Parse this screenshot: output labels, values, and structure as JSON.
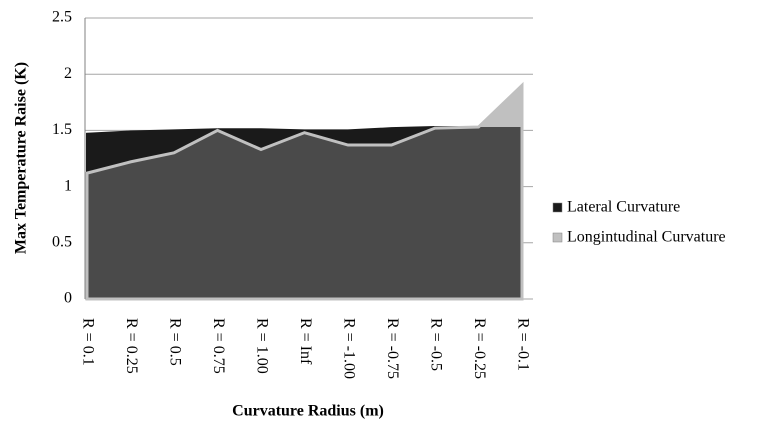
{
  "chart_data": {
    "type": "area",
    "xlabel": "Curvature Radius (m)",
    "ylabel": "Max Temperature Raise (K)",
    "categories": [
      "R = 0.1",
      "R = 0.25",
      "R = 0.5",
      "R = 0.75",
      "R = 1.00",
      "R = Inf",
      "R = -1.00",
      "R = -0.75",
      "R = -0.5",
      "R = -0.25",
      "R = -0.1"
    ],
    "series": [
      {
        "name": "Lateral Curvature",
        "color": "#1a1a1a",
        "values": [
          1.47,
          1.49,
          1.5,
          1.51,
          1.51,
          1.5,
          1.5,
          1.52,
          1.53,
          1.53,
          1.53
        ]
      },
      {
        "name": "Longintudinal Curvature",
        "color": "#c0c0c0",
        "values": [
          1.12,
          1.22,
          1.3,
          1.5,
          1.33,
          1.48,
          1.37,
          1.37,
          1.52,
          1.53,
          1.9
        ]
      }
    ],
    "ylim": [
      0,
      2.5
    ],
    "yticks": [
      0,
      0.5,
      1,
      1.5,
      2,
      2.5
    ],
    "grid": true,
    "legend": "right"
  }
}
